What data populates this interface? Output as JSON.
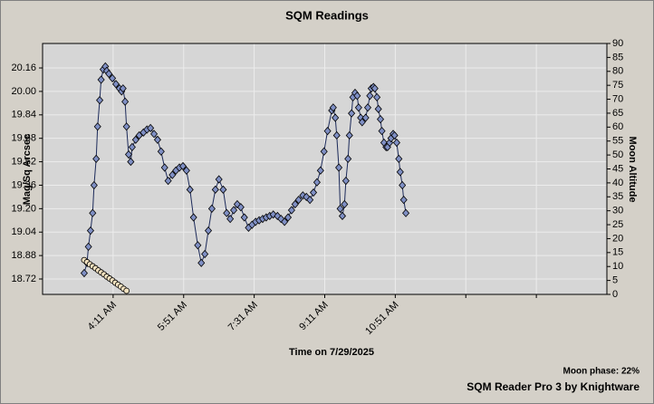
{
  "chart_data": {
    "type": "scatter",
    "title": "SQM Readings",
    "xlabel": "Time on 7/29/2025",
    "ylabel": "Mag/Sq Arcsec",
    "y2label": "Moon Altitude",
    "annotations": [
      "Moon phase: 22%",
      "SQM Reader Pro 3 by Knightware"
    ],
    "xlim": [
      151,
      951
    ],
    "xticks": [
      {
        "value": 251,
        "label": "4:11 AM"
      },
      {
        "value": 351,
        "label": "5:51 AM"
      },
      {
        "value": 451,
        "label": "7:31 AM"
      },
      {
        "value": 551,
        "label": "9:11 AM"
      },
      {
        "value": 651,
        "label": "10:51 AM"
      },
      {
        "value": 751,
        "label": null
      },
      {
        "value": 851,
        "label": null
      }
    ],
    "ylim": [
      18.615,
      20.327
    ],
    "yticks": [
      18.72,
      18.88,
      19.04,
      {
        "value": 19.2,
        "label": "19.20"
      },
      19.36,
      19.52,
      19.68,
      19.84,
      {
        "value": 20,
        "label": "20.00"
      },
      20.16
    ],
    "y2lim": [
      0,
      90
    ],
    "y2ticks": [
      0,
      5,
      10,
      15,
      20,
      25,
      30,
      35,
      40,
      45,
      50,
      55,
      60,
      65,
      70,
      75,
      80,
      85,
      90
    ],
    "grid": true,
    "series": [
      {
        "color": "#7f8fc4",
        "marker": "diamond",
        "x": [
          210,
          214,
          216,
          219,
          222,
          224,
          227,
          229,
          232,
          234,
          237,
          240,
          242,
          245,
          250,
          255,
          260,
          263,
          265,
          268,
          270,
          273,
          276,
          278,
          283,
          288,
          294,
          299,
          304,
          309,
          314,
          319,
          324,
          329,
          335,
          340,
          345,
          350,
          355,
          360,
          365,
          371,
          376,
          381,
          386,
          391,
          396,
          401,
          407,
          412,
          417,
          422,
          427,
          432,
          437,
          443,
          448,
          453,
          458,
          463,
          468,
          473,
          478,
          484,
          489,
          494,
          499,
          504,
          509,
          514,
          520,
          525,
          530,
          535,
          540,
          545,
          550,
          555,
          561,
          563,
          566,
          568,
          571,
          573,
          576,
          579,
          581,
          584,
          586,
          589,
          591,
          594,
          597,
          599,
          602,
          604,
          609,
          612,
          615,
          617,
          620,
          622,
          625,
          627,
          630,
          632,
          635,
          638,
          640,
          643,
          645,
          648,
          650,
          653,
          656,
          658,
          661,
          663,
          666
        ],
        "values": [
          18.76,
          18.83,
          18.94,
          19.05,
          19.17,
          19.36,
          19.54,
          19.76,
          19.94,
          20.08,
          20.15,
          20.17,
          20.14,
          20.12,
          20.09,
          20.05,
          20.02,
          20.0,
          20.02,
          19.93,
          19.76,
          19.57,
          19.52,
          19.62,
          19.67,
          19.7,
          19.72,
          19.74,
          19.75,
          19.71,
          19.67,
          19.59,
          19.48,
          19.39,
          19.43,
          19.46,
          19.48,
          19.49,
          19.46,
          19.33,
          19.14,
          18.95,
          18.83,
          18.89,
          19.05,
          19.2,
          19.33,
          19.4,
          19.33,
          19.17,
          19.13,
          19.19,
          19.23,
          19.21,
          19.14,
          19.07,
          19.09,
          19.11,
          19.12,
          19.13,
          19.14,
          19.15,
          19.16,
          19.15,
          19.13,
          19.11,
          19.14,
          19.19,
          19.23,
          19.26,
          19.29,
          19.28,
          19.26,
          19.31,
          19.38,
          19.46,
          19.59,
          19.73,
          19.87,
          19.89,
          19.82,
          19.7,
          19.48,
          19.2,
          19.15,
          19.23,
          19.39,
          19.54,
          19.7,
          19.85,
          19.96,
          19.99,
          19.97,
          19.89,
          19.82,
          19.79,
          19.82,
          19.89,
          19.97,
          20.02,
          20.03,
          20.02,
          19.96,
          19.88,
          19.81,
          19.73,
          19.65,
          19.62,
          19.62,
          19.65,
          19.68,
          19.71,
          19.7,
          19.65,
          19.54,
          19.45,
          19.36,
          19.26,
          19.17
        ]
      },
      {
        "color": "#f3e2c0",
        "marker": "circle",
        "axis": "y2",
        "x": [
          210,
          214,
          218,
          222,
          226,
          230,
          234,
          238,
          242,
          246,
          250,
          254,
          258,
          262,
          266,
          270
        ],
        "values": [
          12.3,
          11.6,
          10.8,
          10.1,
          9.4,
          8.6,
          7.9,
          7.2,
          6.4,
          5.7,
          5.0,
          4.2,
          3.5,
          2.8,
          2.0,
          1.3
        ]
      }
    ]
  }
}
